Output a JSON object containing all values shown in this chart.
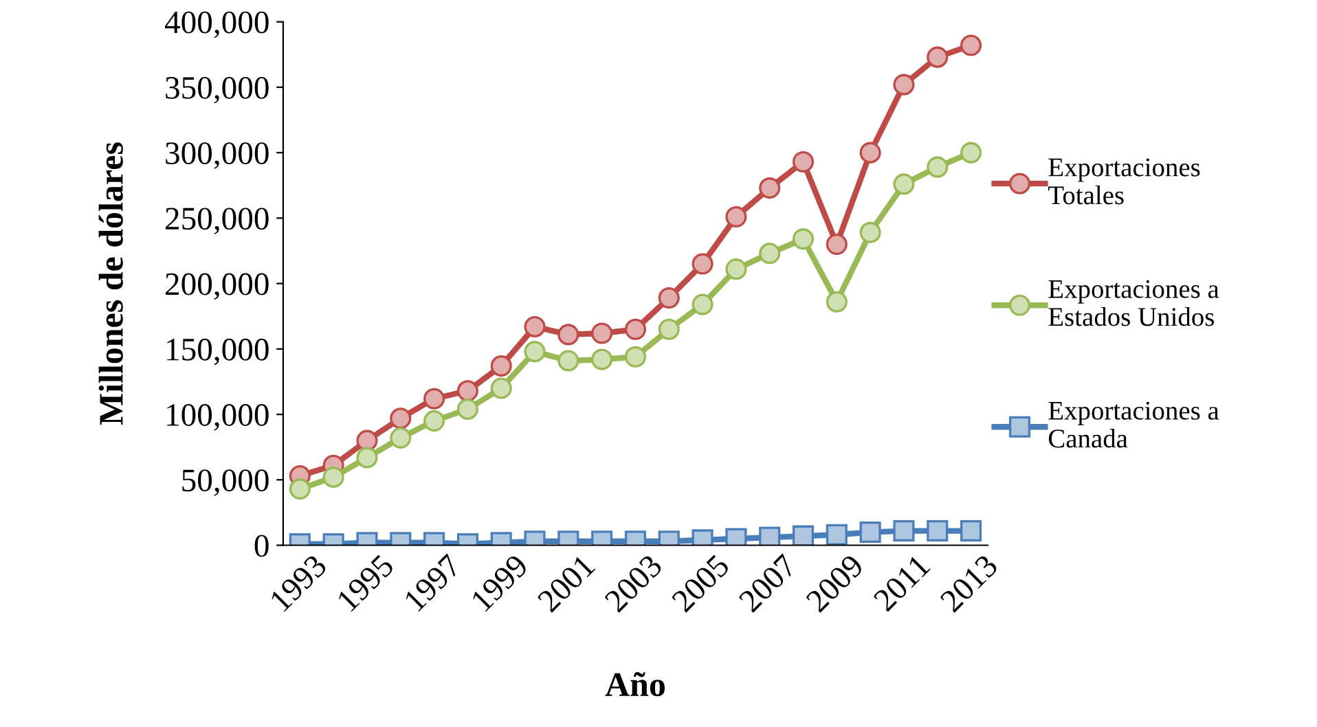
{
  "chart_data": {
    "type": "line",
    "xlabel": "Año",
    "ylabel": "Millones de dólares",
    "categories": [
      "1993",
      null,
      "1995",
      null,
      "1997",
      null,
      "1999",
      null,
      "2001",
      null,
      "2003",
      null,
      "2005",
      null,
      "2007",
      null,
      "2009",
      null,
      "2011",
      null,
      "2013"
    ],
    "series": [
      {
        "name": "Exportaciones Totales",
        "color": "#be4b48",
        "marker": "circle",
        "values": [
          53000,
          61000,
          80000,
          97000,
          112000,
          118000,
          137000,
          167000,
          161000,
          162000,
          165000,
          189000,
          215000,
          251000,
          273000,
          293000,
          230000,
          300000,
          352000,
          373000,
          382000
        ]
      },
      {
        "name": "Exportaciones a Estados Unidos",
        "color": "#98b954",
        "marker": "circle",
        "values": [
          43000,
          52000,
          67000,
          82000,
          95000,
          104000,
          120000,
          148000,
          141000,
          142000,
          144000,
          165000,
          184000,
          211000,
          223000,
          234000,
          186000,
          239000,
          276000,
          289000,
          300000
        ]
      },
      {
        "name": "Exportaciones a Canada",
        "color": "#4a7ebb",
        "marker": "square",
        "values": [
          1000,
          1000,
          2000,
          2000,
          2000,
          1000,
          2000,
          3000,
          3000,
          3000,
          3000,
          3000,
          4000,
          5000,
          6000,
          7000,
          8000,
          10000,
          11000,
          11000,
          11000
        ]
      }
    ],
    "ylim": [
      0,
      400000
    ],
    "yticks": [
      0,
      {
        "value": 50000,
        "label": "50,000"
      },
      {
        "value": 100000,
        "label": "100,000"
      },
      {
        "value": 150000,
        "label": "150,000"
      },
      {
        "value": 200000,
        "label": "200,000"
      },
      {
        "value": 250000,
        "label": "250,000"
      },
      {
        "value": 300000,
        "label": "300,000"
      },
      {
        "value": 350000,
        "label": "350,000"
      },
      {
        "value": 400000,
        "label": "400,000"
      }
    ],
    "grid": false,
    "legend": "right",
    "line_style": "solid"
  }
}
